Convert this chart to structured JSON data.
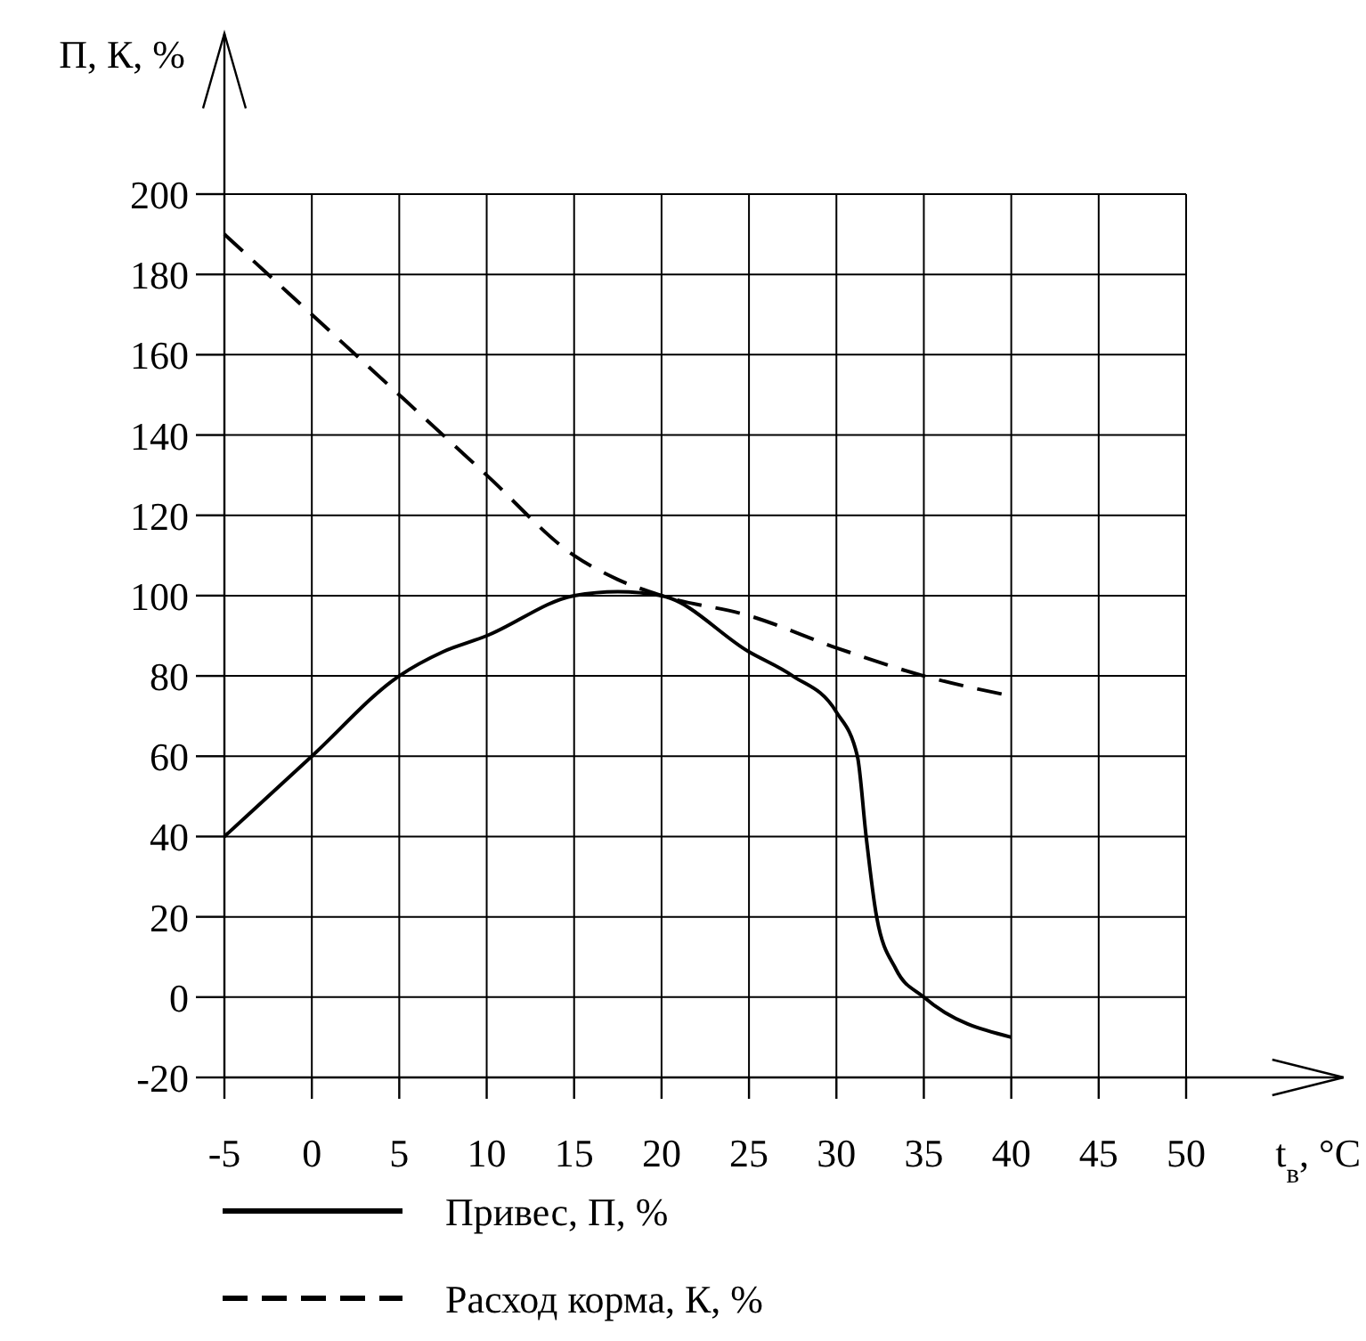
{
  "chart_data": {
    "type": "line",
    "xlabel": "t$_{в}$, °C",
    "ylabel": "П, К, %",
    "xlim": [
      -5,
      59
    ],
    "xticks": [
      -5,
      0,
      5,
      10,
      15,
      20,
      25,
      30,
      35,
      40,
      45,
      50
    ],
    "ylim": [
      -20,
      240
    ],
    "yticks": [
      -20,
      0,
      20,
      40,
      60,
      80,
      100,
      120,
      140,
      160,
      180,
      200
    ],
    "grid": true,
    "legend": "bottom",
    "series": [
      {
        "name": "Привес, П, %",
        "color": "#000000",
        "line_style": "solid",
        "x": [
          -5,
          0,
          5,
          7.5,
          10,
          15,
          17.5,
          20,
          25,
          27.5,
          30,
          31.2,
          31.7,
          32.3,
          33.4,
          35,
          40
        ],
        "values": [
          40,
          60,
          80,
          86,
          90,
          100,
          101,
          100,
          86,
          80,
          71,
          60,
          40,
          20,
          7,
          0,
          -10
        ]
      },
      {
        "name": "Расход корма, К, %",
        "color": "#000000",
        "line_style": "dashed",
        "x": [
          -5,
          0,
          5,
          10,
          15,
          17.5,
          20,
          25,
          30,
          35,
          40
        ],
        "values": [
          190,
          170,
          150,
          130,
          110,
          104,
          100,
          95,
          87,
          80,
          75
        ]
      }
    ]
  }
}
